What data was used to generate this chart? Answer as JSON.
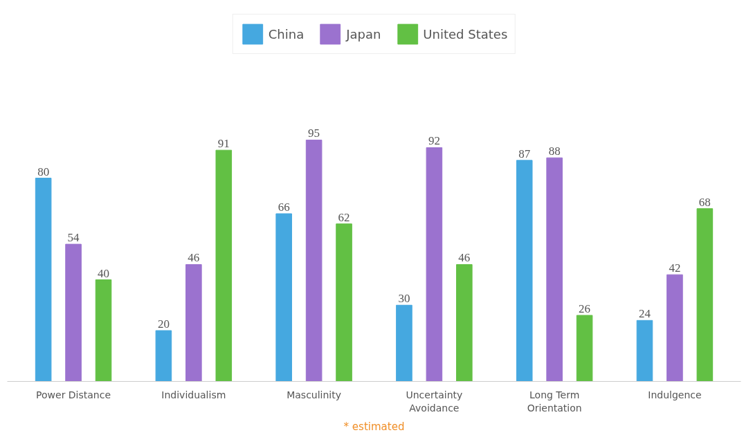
{
  "chart_data": {
    "type": "bar",
    "categories": [
      "Power Distance",
      "Individualism",
      "Masculinity",
      "Uncertainty Avoidance",
      "Long Term Orientation",
      "Indulgence"
    ],
    "series": [
      {
        "name": "China",
        "color": "#45a8e0",
        "values": [
          80,
          20,
          66,
          30,
          87,
          24
        ]
      },
      {
        "name": "Japan",
        "color": "#9b72cf",
        "values": [
          54,
          46,
          95,
          92,
          88,
          42
        ]
      },
      {
        "name": "United States",
        "color": "#62c044",
        "values": [
          40,
          91,
          62,
          46,
          26,
          68
        ]
      }
    ],
    "data_labels": true,
    "legend": "top",
    "grid": false,
    "annotations": [
      "* estimated"
    ]
  }
}
